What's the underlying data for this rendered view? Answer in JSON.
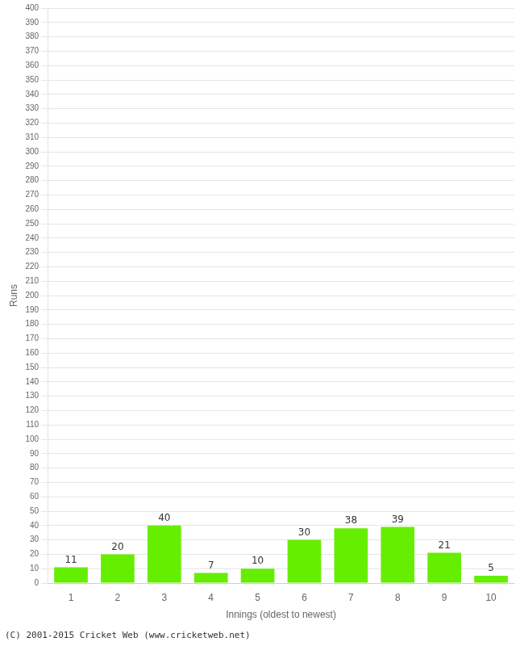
{
  "chart_data": {
    "type": "bar",
    "categories": [
      1,
      2,
      3,
      4,
      5,
      6,
      7,
      8,
      9,
      10
    ],
    "values": [
      11,
      20,
      40,
      7,
      10,
      30,
      38,
      39,
      21,
      5
    ],
    "color": "#66ee00",
    "xlabel": "Innings (oldest to newest)",
    "ylabel": "Runs",
    "ylim": [
      0,
      400
    ],
    "yticks": [
      0,
      10,
      20,
      30,
      40,
      50,
      60,
      70,
      80,
      90,
      100,
      110,
      120,
      130,
      140,
      150,
      160,
      170,
      180,
      190,
      200,
      210,
      220,
      230,
      240,
      250,
      260,
      270,
      280,
      290,
      300,
      310,
      320,
      330,
      340,
      350,
      360,
      370,
      380,
      390,
      400
    ],
    "grid": true,
    "data_labels": true,
    "annotations": [
      "(C) 2001-2015 Cricket Web (www.cricketweb.net)"
    ]
  }
}
